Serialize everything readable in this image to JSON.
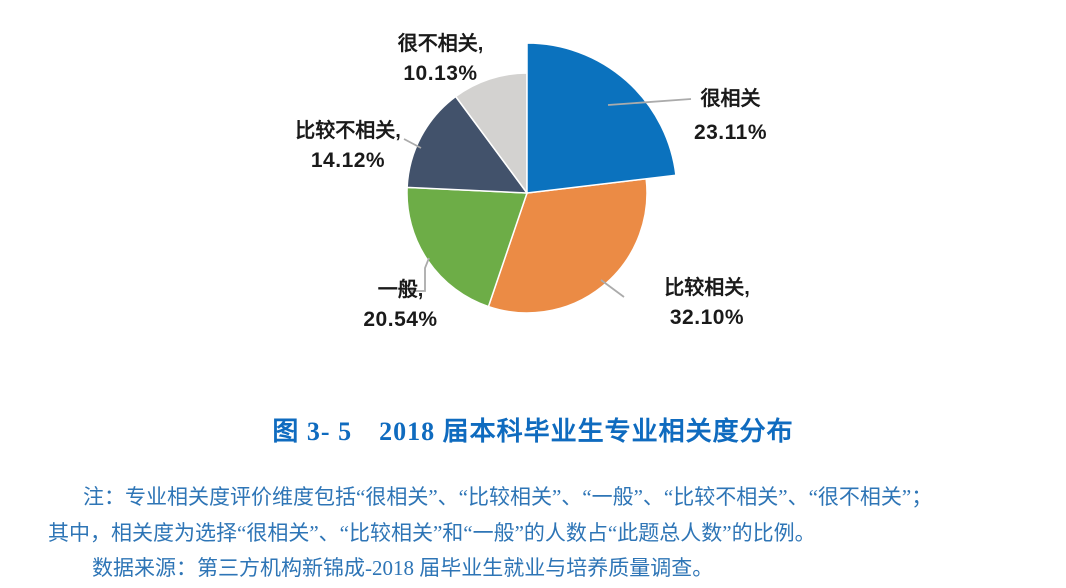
{
  "figure": {
    "title": "图 3- 5　2018 届本科毕业生专业相关度分布",
    "notes": [
      "注：专业相关度评价维度包括“很相关”、“比较相关”、“一般”、“比较不相关”、“很不相关”；",
      "其中，相关度为选择“很相关”、“比较相关”和“一般”的人数占“此题总人数”的比例。",
      "数据来源：第三方机构新锦成-2018 届毕业生就业与培养质量调查。"
    ]
  },
  "chart_data": {
    "type": "pie",
    "title": "2018届本科毕业生专业相关度分布",
    "legend": "none",
    "data_labels": "outside-with-leader-lines",
    "start_angle_deg": 0,
    "direction": "clockwise",
    "center": [
      527,
      193
    ],
    "radius": 120,
    "radius_exploded": 150,
    "slices": [
      {
        "key": "very-relevant",
        "label": "很相关",
        "label_text": "很相关",
        "value": 23.11,
        "pct_text": "23.11%",
        "color": "#0b72be",
        "exploded": true
      },
      {
        "key": "fairly-relevant",
        "label": "比较相关",
        "label_text": "比较相关,",
        "value": 32.1,
        "pct_text": "32.10%",
        "color": "#eb8b45",
        "exploded": false
      },
      {
        "key": "average",
        "label": "一般",
        "label_text": "一般,",
        "value": 20.54,
        "pct_text": "20.54%",
        "color": "#6dad47",
        "exploded": false
      },
      {
        "key": "fairly-irrelevant",
        "label": "比较不相关",
        "label_text": "比较不相关,",
        "value": 14.12,
        "pct_text": "14.12%",
        "color": "#42526b",
        "exploded": false
      },
      {
        "key": "very-irrelevant",
        "label": "很不相关",
        "label_text": "很不相关,",
        "value": 10.13,
        "pct_text": "10.13%",
        "color": "#d3d2d0",
        "exploded": false
      }
    ],
    "colors": {
      "leader_line": "#ababab",
      "label_text": "#1a1a1a",
      "title_text": "#0f6bbf",
      "note_text": "#2e75b6"
    }
  }
}
